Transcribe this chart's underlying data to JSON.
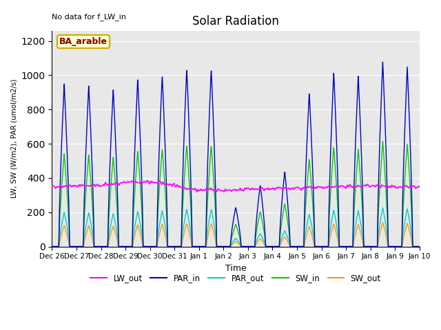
{
  "title": "Solar Radiation",
  "xlabel": "Time",
  "ylabel": "LW, SW (W/m2), PAR (umol/m2/s)",
  "note": "No data for f_LW_in",
  "label_text": "BA_arable",
  "ylim": [
    0,
    1260
  ],
  "yticks": [
    0,
    200,
    400,
    600,
    800,
    1000,
    1200
  ],
  "n_days": 15,
  "series_colors": {
    "LW_out": "#ff00ff",
    "PAR_in": "#0000cc",
    "PAR_out": "#00cccc",
    "SW_in": "#00cc00",
    "SW_out": "#ff9900"
  },
  "par_in_peaks": [
    950,
    940,
    920,
    980,
    1000,
    1040,
    1040,
    230,
    360,
    440,
    900,
    1020,
    1000,
    1080,
    1050
  ],
  "sw_in_scale": 0.57,
  "par_out_scale": 0.21,
  "sw_out_scale": 0.13,
  "xtick_labels": [
    "Dec 26",
    "Dec 27",
    "Dec 28",
    "Dec 29",
    "Dec 30",
    "Dec 31",
    "Jan 1",
    "Jan 2",
    "Jan 3",
    "Jan 4",
    "Jan 5",
    "Jan 6",
    "Jan 7",
    "Jan 8",
    "Jan 9",
    "Jan 10"
  ],
  "background_color": "#e8e8e8",
  "figure_color": "#ffffff"
}
